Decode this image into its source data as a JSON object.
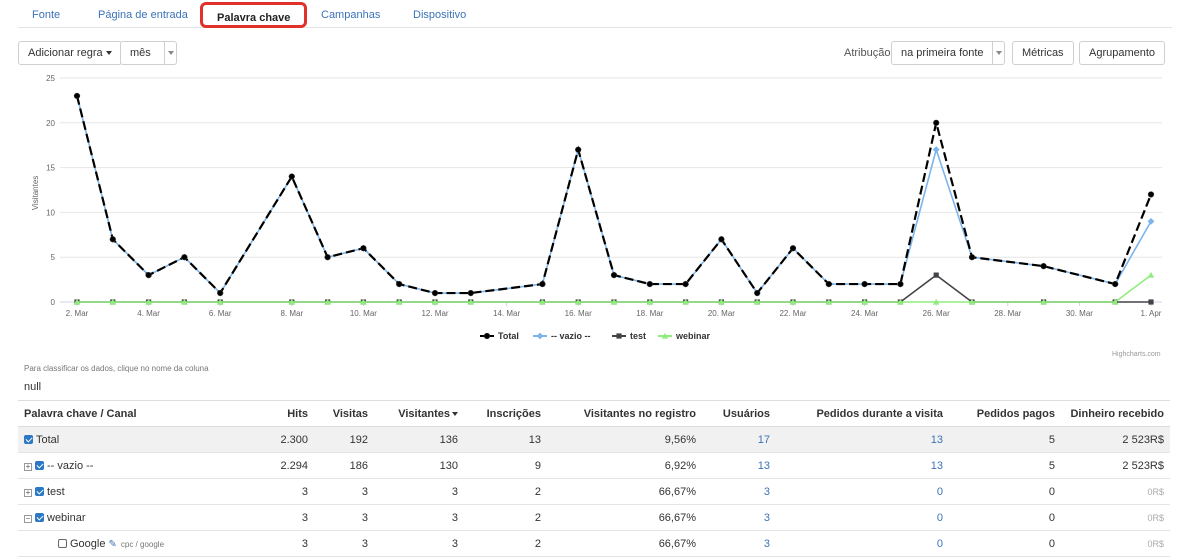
{
  "tabs": [
    "Fonte",
    "Página de entrada",
    "Palavra chave",
    "Campanhas",
    "Dispositivo"
  ],
  "toolbar": {
    "add_rule": "Adicionar regra",
    "period": "mês",
    "attribution_label": "Atribução",
    "attribution_value": "na primeira fonte",
    "metrics": "Métricas",
    "grouping": "Agrupamento"
  },
  "chart_data": {
    "type": "line",
    "ylabel": "Visitantes",
    "ylim": [
      0,
      25
    ],
    "yticks": [
      0,
      5,
      10,
      15,
      20,
      25
    ],
    "xticks": [
      "2. Mar",
      "4. Mar",
      "6. Mar",
      "8. Mar",
      "10. Mar",
      "12. Mar",
      "14. Mar",
      "16. Mar",
      "18. Mar",
      "20. Mar",
      "22. Mar",
      "24. Mar",
      "26. Mar",
      "28. Mar",
      "30. Mar",
      "1. Apr"
    ],
    "x": [
      "2. Mar",
      "3. Mar",
      "4. Mar",
      "5. Mar",
      "6. Mar",
      "8. Mar",
      "9. Mar",
      "10. Mar",
      "11. Mar",
      "12. Mar",
      "13. Mar",
      "15. Mar",
      "16. Mar",
      "17. Mar",
      "18. Mar",
      "19. Mar",
      "20. Mar",
      "21. Mar",
      "22. Mar",
      "23. Mar",
      "24. Mar",
      "25. Mar",
      "26. Mar",
      "27. Mar",
      "29. Mar",
      "31. Mar",
      "1. Apr"
    ],
    "series": [
      {
        "name": "Total",
        "color": "#000000",
        "values": [
          23,
          7,
          3,
          5,
          1,
          14,
          5,
          6,
          2,
          1,
          1,
          2,
          17,
          3,
          2,
          2,
          7,
          1,
          6,
          2,
          2,
          2,
          20,
          5,
          4,
          2,
          12
        ]
      },
      {
        "name": "-- vazio --",
        "color": "#7cb5ec",
        "values": [
          23,
          7,
          3,
          5,
          1,
          14,
          5,
          6,
          2,
          1,
          1,
          2,
          17,
          3,
          2,
          2,
          7,
          1,
          6,
          2,
          2,
          2,
          17,
          5,
          4,
          2,
          9
        ]
      },
      {
        "name": "test",
        "color": "#434348",
        "values": [
          0,
          0,
          0,
          0,
          0,
          0,
          0,
          0,
          0,
          0,
          0,
          0,
          0,
          0,
          0,
          0,
          0,
          0,
          0,
          0,
          0,
          0,
          3,
          0,
          0,
          0,
          0
        ]
      },
      {
        "name": "webinar",
        "color": "#90ed7d",
        "values": [
          0,
          0,
          0,
          0,
          0,
          0,
          0,
          0,
          0,
          0,
          0,
          0,
          0,
          0,
          0,
          0,
          0,
          0,
          0,
          0,
          0,
          0,
          0,
          0,
          0,
          0,
          3
        ]
      }
    ],
    "credits": "Highcharts.com"
  },
  "info": {
    "hint": "Para classificar os dados, clique no nome da coluna",
    "null_value": "null"
  },
  "table": {
    "headers": [
      "Palavra chave / Canal",
      "Hits",
      "Visitas",
      "Visitantes",
      "Inscrições",
      "Visitantes no registro",
      "Usuários",
      "Pedidos durante a visita",
      "Pedidos pagos",
      "Dinheiro recebido"
    ],
    "rows": [
      {
        "name": "Total",
        "hits": "2.300",
        "visits": "192",
        "visitors": "136",
        "signups": "13",
        "reg_visitors": "9,56%",
        "users": "17",
        "orders_visit": "13",
        "paid": "5",
        "money": "2 523R$"
      },
      {
        "name": "-- vazio --",
        "expander": "+",
        "hits": "2.294",
        "visits": "186",
        "visitors": "130",
        "signups": "9",
        "reg_visitors": "6,92%",
        "users": "13",
        "orders_visit": "13",
        "paid": "5",
        "money": "2 523R$"
      },
      {
        "name": "test",
        "expander": "+",
        "hits": "3",
        "visits": "3",
        "visitors": "3",
        "signups": "2",
        "reg_visitors": "66,67%",
        "users": "3",
        "orders_visit": "0",
        "paid": "0",
        "money": "0R$"
      },
      {
        "name": "webinar",
        "expander": "−",
        "hits": "3",
        "visits": "3",
        "visitors": "3",
        "signups": "2",
        "reg_visitors": "66,67%",
        "users": "3",
        "orders_visit": "0",
        "paid": "0",
        "money": "0R$"
      },
      {
        "name": "Google",
        "sub": "cpc / google",
        "hits": "3",
        "visits": "3",
        "visitors": "3",
        "signups": "2",
        "reg_visitors": "66,67%",
        "users": "3",
        "orders_visit": "0",
        "paid": "0",
        "money": "0R$"
      }
    ]
  }
}
